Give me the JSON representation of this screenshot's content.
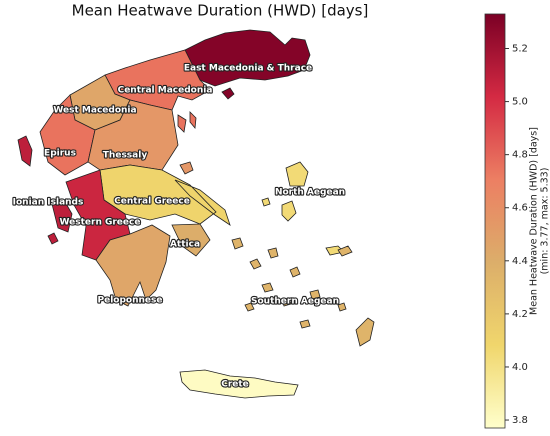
{
  "chart_data": {
    "type": "choropleth",
    "title": "Mean Heatwave Duration (HWD) [days]",
    "regions": [
      {
        "name": "East Macedonia & Thrace",
        "value": 5.3
      },
      {
        "name": "Central Macedonia",
        "value": 4.75
      },
      {
        "name": "West Macedonia",
        "value": 4.45
      },
      {
        "name": "Epirus",
        "value": 4.75
      },
      {
        "name": "Thessaly",
        "value": 4.55
      },
      {
        "name": "Ionian Islands",
        "value": 5.1
      },
      {
        "name": "Central Greece",
        "value": 4.1
      },
      {
        "name": "Western Greece",
        "value": 5.05
      },
      {
        "name": "Attica",
        "value": 4.4
      },
      {
        "name": "Peloponnese",
        "value": 4.45
      },
      {
        "name": "North Aegean",
        "value": 4.05
      },
      {
        "name": "Southern Aegean",
        "value": 4.35
      },
      {
        "name": "Crete",
        "value": 3.8
      }
    ],
    "colorbar": {
      "label": [
        "Mean Heatwave Duration (HWD) [days]",
        "(min: 3.77, max: 5.33)"
      ],
      "lim": [
        3.77,
        5.33
      ],
      "ticks": [
        3.8,
        {
          "value": 4,
          "label": "4.0"
        },
        4.2,
        4.4,
        4.6,
        4.8,
        {
          "value": 5,
          "label": "5.0"
        },
        5.2
      ],
      "colormap": [
        "#ffffcc",
        "#f0d66c",
        "#dcae6a",
        "#ec7f63",
        "#d42a43",
        "#7b0025"
      ]
    }
  }
}
